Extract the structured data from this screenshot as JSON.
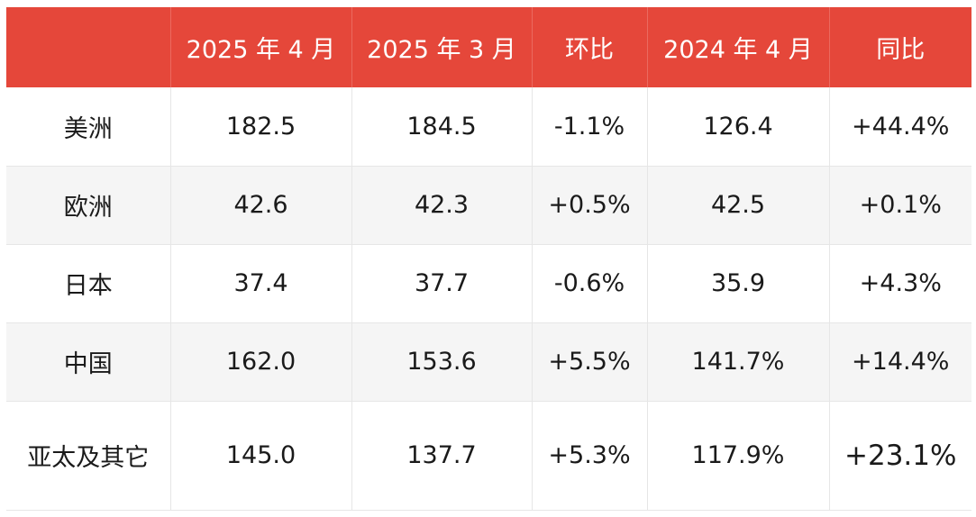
{
  "table": {
    "headers": [
      "",
      "2025 年 4 月",
      "2025 年 3 月",
      "环比",
      "2024 年 4 月",
      "同比"
    ],
    "rows": [
      [
        "美洲",
        "182.5",
        "184.5",
        "-1.1%",
        "126.4",
        "+44.4%"
      ],
      [
        "欧洲",
        "42.6",
        "42.3",
        "+0.5%",
        "42.5",
        "+0.1%"
      ],
      [
        "日本",
        "37.4",
        "37.7",
        "-0.6%",
        "35.9",
        "+4.3%"
      ],
      [
        "中国",
        "162.0",
        "153.6",
        "+5.5%",
        "141.7%",
        "+14.4%"
      ],
      [
        "亚太及其它",
        "145.0",
        "137.7",
        "+5.3%",
        "117.9%",
        "+23.1%"
      ]
    ]
  },
  "colors": {
    "header_bg": "#e5473a",
    "header_text": "#ffffff",
    "row_alt_bg": "#f5f5f5"
  }
}
